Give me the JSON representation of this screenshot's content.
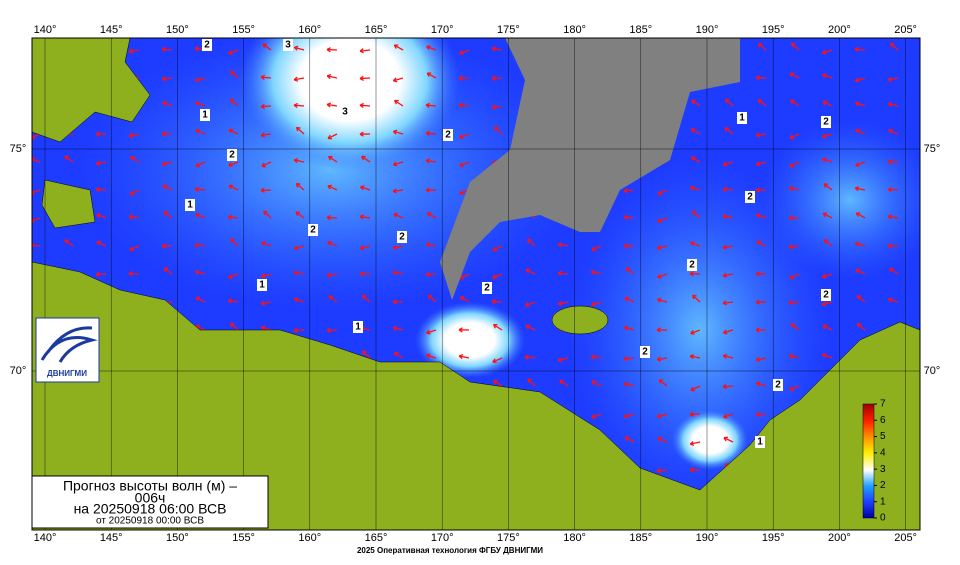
{
  "map": {
    "lon_ticks": [
      "140°",
      "145°",
      "150°",
      "155°",
      "160°",
      "165°",
      "170°",
      "175°",
      "180°",
      "185°",
      "190°",
      "195°",
      "200°",
      "205°"
    ],
    "lat_ticks": [
      "75°",
      "70°"
    ],
    "contour_labels": [
      "2",
      "3",
      "3",
      "1",
      "2",
      "1",
      "2",
      "2",
      "1",
      "1",
      "2",
      "2",
      "1",
      "2",
      "2",
      "2",
      "2",
      "2",
      "2",
      "1"
    ],
    "colorbar_ticks": [
      "0",
      "1",
      "2",
      "3",
      "4",
      "5",
      "6",
      "7"
    ],
    "legend": {
      "line1": "Прогноз высоты волн (м) –",
      "line2": "006ч",
      "line3": "на 20250918 06:00 ВСВ",
      "line4": "от 20250918 00:00 ВСВ"
    },
    "logo": "ДВНИГМИ",
    "footer": "2025 Оперативная технология ФГБУ ДВНИГМИ"
  }
}
